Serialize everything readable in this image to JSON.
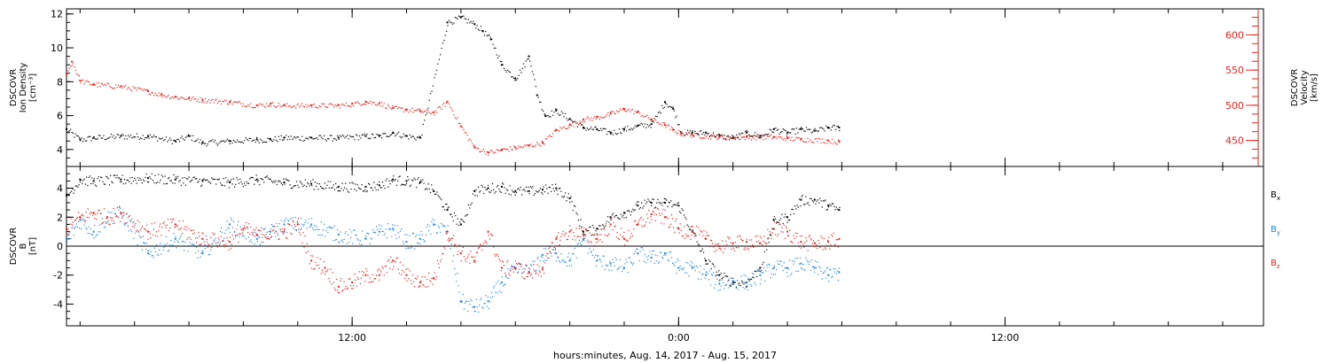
{
  "xlabel": "hours:minutes, Aug. 14, 2017 - Aug. 15, 2017",
  "x_axis": {
    "unit": "hours from start (Aug. 14, 2017 ~01:30)",
    "ticks": [
      {
        "h": 10.5,
        "label": "12:00"
      },
      {
        "h": 22.5,
        "label": "0:00"
      },
      {
        "h": 34.5,
        "label": "12:00"
      }
    ],
    "minor_every_hours": 2
  },
  "colors": {
    "black": "#000000",
    "red": "#e8231c",
    "blue": "#1f88e0"
  },
  "chart_data": [
    {
      "type": "scatter",
      "panel": "top",
      "ylabel": [
        "DSCOVR",
        "Ion Density",
        "[cm⁻³]"
      ],
      "ylabel_right": [
        "DSCOVR",
        "Velocity",
        "[km/s]"
      ],
      "ylim": [
        3.0,
        12.3
      ],
      "ylim_right": [
        413,
        637
      ],
      "yticks": [
        4,
        6,
        8,
        10,
        12
      ],
      "yticks_right": [
        450,
        500,
        550,
        600
      ],
      "series": [
        {
          "color": "black",
          "axis": "left",
          "x": [
            0.0,
            0.5,
            1.0,
            2.0,
            3.0,
            4.0,
            4.5,
            5.0,
            6.0,
            7.0,
            7.5,
            8.0,
            9.0,
            10.0,
            11.0,
            11.5,
            12.0,
            12.5,
            13.0,
            14.0,
            14.5,
            15.0,
            15.3,
            15.6,
            16.0,
            16.5,
            17.0,
            17.3,
            17.6,
            18.0,
            18.5,
            19.0,
            19.5,
            20.0,
            20.5,
            21.0,
            21.5,
            22.0,
            22.3,
            22.6,
            23.0,
            23.5,
            24.0,
            24.5,
            25.0,
            25.5,
            26.0,
            26.5,
            27.0,
            27.5,
            28.0,
            28.4
          ],
          "y": [
            5.2,
            4.6,
            4.7,
            4.8,
            4.8,
            4.5,
            4.8,
            4.4,
            4.5,
            4.6,
            4.6,
            4.7,
            4.7,
            4.7,
            4.8,
            4.8,
            5.0,
            4.8,
            4.7,
            11.5,
            11.8,
            11.4,
            11.0,
            10.5,
            9.0,
            8.2,
            9.5,
            7.2,
            6.0,
            6.3,
            5.8,
            5.3,
            5.2,
            5.0,
            5.2,
            5.4,
            5.5,
            6.8,
            6.4,
            5.0,
            5.0,
            5.0,
            4.8,
            4.7,
            5.0,
            4.8,
            5.2,
            5.0,
            5.2,
            5.1,
            5.3,
            5.3
          ]
        },
        {
          "color": "red",
          "axis": "right",
          "x": [
            0.0,
            0.2,
            0.5,
            1.0,
            2.0,
            3.0,
            3.5,
            4.0,
            4.5,
            5.0,
            6.0,
            7.0,
            7.5,
            8.0,
            9.0,
            10.0,
            10.5,
            11.0,
            11.5,
            12.0,
            12.5,
            13.0,
            13.5,
            14.0,
            14.5,
            15.0,
            15.5,
            16.0,
            16.5,
            17.0,
            17.5,
            18.0,
            18.5,
            19.0,
            19.5,
            20.0,
            20.5,
            21.0,
            21.5,
            22.0,
            22.3,
            22.6,
            23.0,
            24.0,
            25.0,
            26.0,
            26.5,
            27.0,
            28.0,
            28.4
          ],
          "y": [
            545,
            562,
            535,
            530,
            527,
            520,
            515,
            512,
            510,
            508,
            505,
            500,
            502,
            500,
            500,
            500,
            502,
            505,
            503,
            496,
            494,
            492,
            490,
            505,
            470,
            440,
            433,
            437,
            440,
            443,
            447,
            465,
            472,
            480,
            483,
            488,
            495,
            490,
            480,
            472,
            465,
            460,
            458,
            455,
            455,
            455,
            453,
            452,
            450,
            448
          ]
        }
      ]
    },
    {
      "type": "scatter",
      "panel": "bottom",
      "ylabel": [
        "DSCOVR",
        "B",
        "[nT]"
      ],
      "ylim": [
        -5.5,
        5.5
      ],
      "yticks": [
        -4,
        -2,
        0,
        2,
        4
      ],
      "zero_line": true,
      "series": [
        {
          "name": "Bx",
          "color": "black",
          "x": [
            0.0,
            0.5,
            1.0,
            2.0,
            3.0,
            4.0,
            5.0,
            6.0,
            7.0,
            8.0,
            9.0,
            10.0,
            11.0,
            11.5,
            12.0,
            12.5,
            13.0,
            13.5,
            14.0,
            14.5,
            15.0,
            15.5,
            16.0,
            16.5,
            17.0,
            17.5,
            18.0,
            18.5,
            19.0,
            19.5,
            20.0,
            20.5,
            21.0,
            21.5,
            22.0,
            22.5,
            23.0,
            23.5,
            24.0,
            24.5,
            25.0,
            25.5,
            26.0,
            26.5,
            27.0,
            27.5,
            28.0,
            28.4
          ],
          "y": [
            3.5,
            4.6,
            4.5,
            4.6,
            4.7,
            4.6,
            4.5,
            4.4,
            4.6,
            4.4,
            4.3,
            4.1,
            4.1,
            4.2,
            4.6,
            4.5,
            4.4,
            3.8,
            2.5,
            1.5,
            3.8,
            4.0,
            4.1,
            3.8,
            3.8,
            3.9,
            4.0,
            3.3,
            1.0,
            1.2,
            2.0,
            2.3,
            2.8,
            3.0,
            3.0,
            2.8,
            1.0,
            -1.0,
            -2.0,
            -2.5,
            -2.5,
            -1.5,
            1.8,
            2.0,
            3.2,
            3.2,
            2.8,
            2.5
          ]
        },
        {
          "name": "By",
          "color": "blue",
          "x": [
            0.0,
            0.5,
            1.0,
            1.5,
            2.0,
            3.0,
            4.0,
            5.0,
            6.0,
            7.0,
            7.5,
            8.0,
            9.0,
            10.0,
            11.0,
            11.5,
            12.0,
            12.5,
            13.0,
            13.5,
            14.0,
            14.5,
            15.0,
            15.5,
            16.0,
            16.5,
            17.0,
            17.5,
            18.0,
            18.5,
            19.0,
            19.5,
            20.0,
            20.5,
            21.0,
            21.5,
            22.0,
            22.5,
            23.0,
            23.5,
            24.0,
            24.5,
            25.0,
            25.5,
            26.0,
            26.5,
            27.0,
            27.5,
            28.0,
            28.4
          ],
          "y": [
            0.5,
            1.8,
            1.0,
            2.0,
            2.3,
            -0.5,
            0.5,
            -0.5,
            1.5,
            0.5,
            1.0,
            1.5,
            1.5,
            0.8,
            0.5,
            1.0,
            1.2,
            0.3,
            0.5,
            1.5,
            1.0,
            -3.8,
            -4.2,
            -3.8,
            -2.5,
            -1.5,
            -1.8,
            -0.6,
            -0.5,
            -1.0,
            0.5,
            -1.0,
            -1.2,
            -1.5,
            -0.5,
            -0.8,
            -0.5,
            -1.5,
            -1.5,
            -2.0,
            -2.6,
            -2.4,
            -2.5,
            -2.0,
            -1.5,
            -1.5,
            -1.2,
            -1.5,
            -2.0,
            -1.8
          ]
        },
        {
          "name": "Bz",
          "color": "red",
          "x": [
            0.0,
            0.5,
            1.0,
            1.5,
            2.0,
            3.0,
            4.0,
            5.0,
            6.0,
            6.5,
            7.0,
            8.0,
            8.5,
            9.0,
            9.5,
            10.0,
            10.5,
            11.0,
            11.5,
            12.0,
            12.5,
            13.0,
            13.5,
            14.0,
            14.5,
            15.0,
            15.5,
            16.0,
            16.5,
            17.0,
            17.5,
            18.0,
            18.5,
            19.0,
            19.5,
            20.0,
            20.5,
            21.0,
            21.5,
            22.0,
            22.5,
            23.0,
            23.5,
            24.0,
            24.5,
            25.0,
            25.5,
            26.0,
            26.5,
            27.0,
            27.5,
            28.0,
            28.4
          ],
          "y": [
            1.2,
            2.0,
            2.3,
            2.0,
            2.3,
            1.0,
            1.5,
            0.5,
            0.3,
            1.2,
            0.8,
            1.0,
            1.5,
            -1.0,
            -1.5,
            -2.8,
            -2.5,
            -2.0,
            -2.0,
            -1.0,
            -2.0,
            -2.5,
            -2.2,
            1.0,
            -0.5,
            -1.0,
            1.0,
            -1.5,
            -1.5,
            -1.8,
            -1.5,
            0.5,
            1.0,
            0.8,
            0.5,
            1.5,
            0.5,
            1.5,
            2.2,
            2.0,
            1.2,
            1.0,
            0.5,
            0.0,
            0.2,
            0.3,
            0.2,
            1.2,
            1.0,
            0.3,
            0.2,
            0.3,
            0.5
          ]
        }
      ],
      "legend": [
        "B",
        "B",
        "B"
      ],
      "legend_subs": [
        "x",
        "y",
        "z"
      ]
    }
  ]
}
